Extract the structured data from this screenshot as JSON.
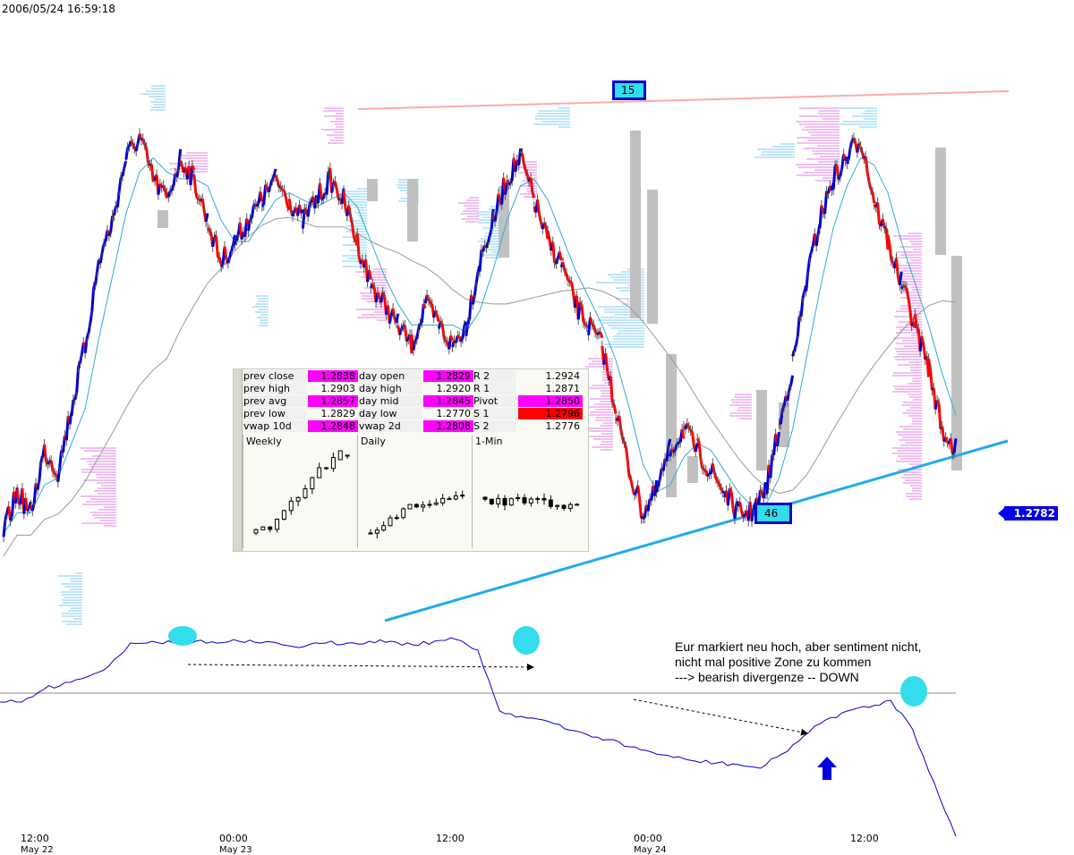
{
  "timestamp": "2006/05/24 16:59:18",
  "price_tag": "1.2782",
  "box_top": "15",
  "box_bottom": "46",
  "annotation": [
    "Eur markiert neu hoch, aber sentiment nicht,",
    "nicht mal positive Zone zu kommen",
    "---> bearish divergenze -- DOWN"
  ],
  "x_ticks": [
    {
      "time": "12:00",
      "date": "May 22"
    },
    {
      "time": "00:00",
      "date": "May 23"
    },
    {
      "time": "12:00",
      "date": ""
    },
    {
      "time": "00:00",
      "date": "May 24"
    },
    {
      "time": "12:00",
      "date": ""
    }
  ],
  "colors": {
    "price_line": "#0000cc",
    "price_down": "#ff0000",
    "ma_fast": "#33aadd",
    "ma_slow": "#999999",
    "resistance": "#ffaaaa",
    "support": "#22aaee",
    "profile_pink": "#f0c0f0",
    "profile_blue": "#bfe6f8",
    "highlight": "#ff00ff",
    "alert": "#ff0000",
    "sentiment": "#0000cc",
    "marker": "#33ddee"
  },
  "panel": {
    "rows": [
      [
        {
          "l": "prev close",
          "v": "1.2838",
          "c": "mag"
        },
        {
          "l": "day open",
          "v": "1.2829",
          "c": "mag"
        },
        {
          "l": "R 2",
          "v": "1.2924",
          "c": ""
        }
      ],
      [
        {
          "l": "prev high",
          "v": "1.2903",
          "c": ""
        },
        {
          "l": "day high",
          "v": "1.2920",
          "c": ""
        },
        {
          "l": "R 1",
          "v": "1.2871",
          "c": ""
        }
      ],
      [
        {
          "l": "prev avg",
          "v": "1.2857",
          "c": "mag"
        },
        {
          "l": "day mid",
          "v": "1.2845",
          "c": "mag"
        },
        {
          "l": "Pivot",
          "v": "1.2850",
          "c": "mag"
        }
      ],
      [
        {
          "l": "prev low",
          "v": "1.2829",
          "c": ""
        },
        {
          "l": "day low",
          "v": "1.2770",
          "c": ""
        },
        {
          "l": "S 1",
          "v": "1.2796",
          "c": "red"
        }
      ],
      [
        {
          "l": "vwap 10d",
          "v": "1.2848",
          "c": "mag"
        },
        {
          "l": "vwap 2d",
          "v": "1.2808",
          "c": "mag"
        },
        {
          "l": "S 2",
          "v": "1.2776",
          "c": ""
        }
      ]
    ],
    "minis": [
      "Weekly",
      "Daily",
      "1-Min"
    ]
  },
  "chart_data": {
    "type": "line",
    "series": [
      {
        "values": [
          1.274,
          1.276,
          1.275,
          1.278,
          1.277,
          1.28,
          1.283,
          1.287,
          1.289,
          1.292,
          1.293,
          1.291,
          1.29,
          1.292,
          1.291,
          1.289,
          1.287,
          1.288,
          1.289,
          1.29,
          1.291,
          1.29,
          1.289,
          1.29,
          1.291,
          1.29,
          1.288,
          1.286,
          1.285,
          1.284,
          1.283,
          1.285,
          1.284,
          1.283,
          1.284,
          1.287,
          1.289,
          1.291,
          1.292,
          1.29,
          1.288,
          1.287,
          1.285,
          1.284,
          1.283,
          1.28,
          1.277,
          1.275,
          1.276,
          1.278,
          1.279,
          1.278,
          1.277,
          1.276,
          1.275,
          1.275,
          1.276,
          1.279,
          1.282,
          1.286,
          1.289,
          1.291,
          1.292,
          1.293,
          1.29,
          1.288,
          1.286,
          1.284,
          1.282,
          1.279,
          1.278
        ]
      }
    ],
    "sentiment": [
      -0.5,
      -0.5,
      0.2,
      0.6,
      0.9,
      1.5,
      2.8,
      2.9,
      2.8,
      2.9,
      2.8,
      2.9,
      2.8,
      2.7,
      2.6,
      2.8,
      2.8,
      2.9,
      2.9,
      2.7,
      2.9,
      3.0,
      2.4,
      -1.0,
      -1.3,
      -1.5,
      -2.0,
      -2.3,
      -2.6,
      -3.0,
      -3.3,
      -3.6,
      -3.8,
      -3.9,
      -4.0,
      -4.2,
      -3.4,
      -2.4,
      -1.5,
      -1.0,
      -0.8,
      -0.4,
      -2.0,
      -5.0,
      -8.0
    ]
  }
}
